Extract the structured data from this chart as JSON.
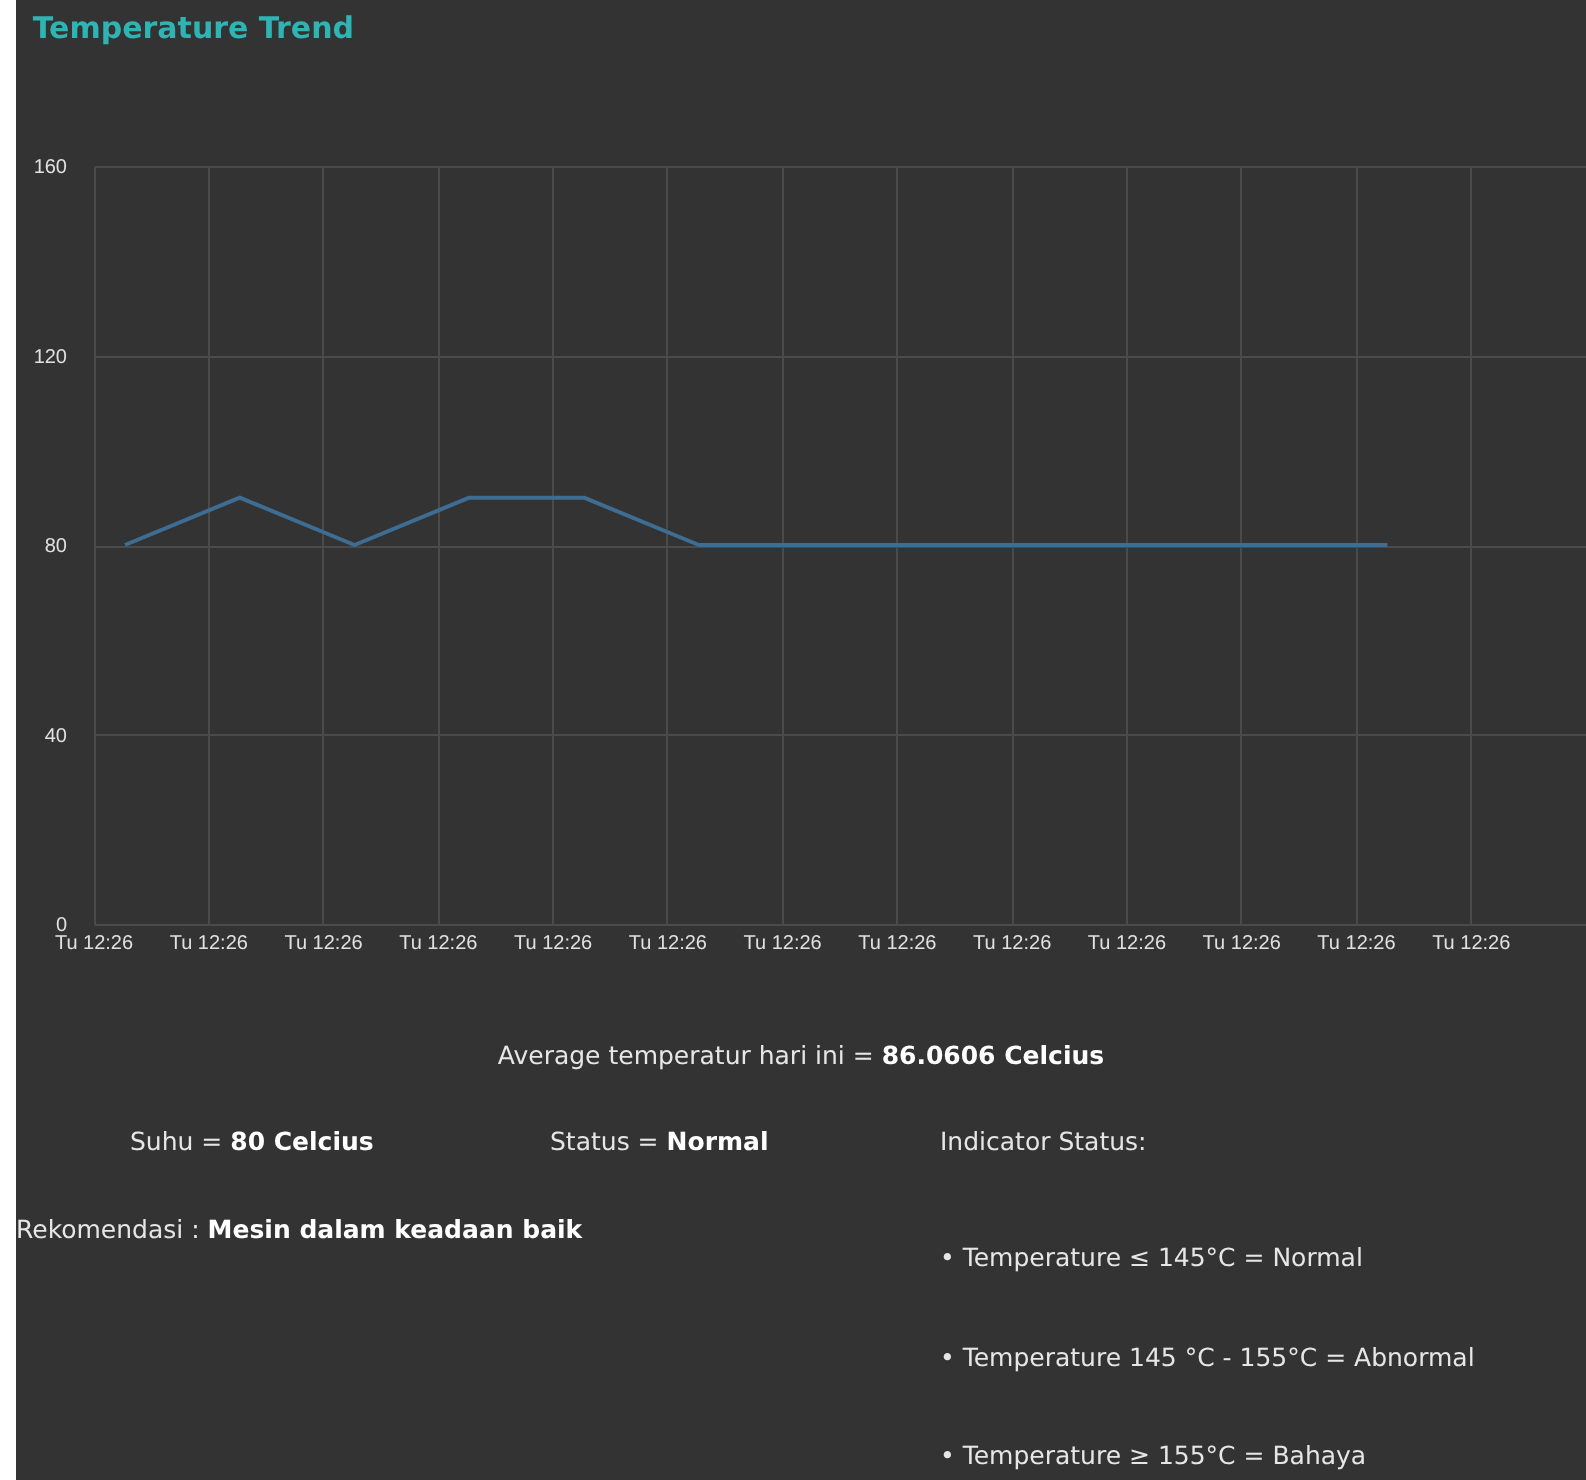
{
  "chart_data": {
    "type": "line",
    "title": "Temperature Trend",
    "categories": [
      "Tu 12:26",
      "Tu 12:26",
      "Tu 12:26",
      "Tu 12:26",
      "Tu 12:26",
      "Tu 12:26",
      "Tu 12:26",
      "Tu 12:26",
      "Tu 12:26",
      "Tu 12:26",
      "Tu 12:26",
      "Tu 12:26",
      "Tu 12:26"
    ],
    "series": [
      {
        "color": "#3e6d94",
        "values": [
          80,
          90,
          80,
          90,
          90,
          80,
          80,
          80,
          80,
          80,
          80,
          80,
          null
        ]
      }
    ],
    "ylim": [
      0,
      160
    ],
    "yticks": [
      0,
      40,
      80,
      120,
      160
    ],
    "grid": true,
    "marker": "none",
    "annotations": [
      "Average temperatur hari ini = 86.0606 Celcius",
      "Suhu = 80 Celcius",
      "Status = Normal",
      "Rekomendasi : Mesin dalam keadaan baik",
      "Indicator Status:",
      "• Temperature ≤ 145°C = Normal",
      "• Temperature 145 °C - 155°C = Abnormal",
      "• Temperature ≥ 155°C = Bahaya"
    ]
  }
}
